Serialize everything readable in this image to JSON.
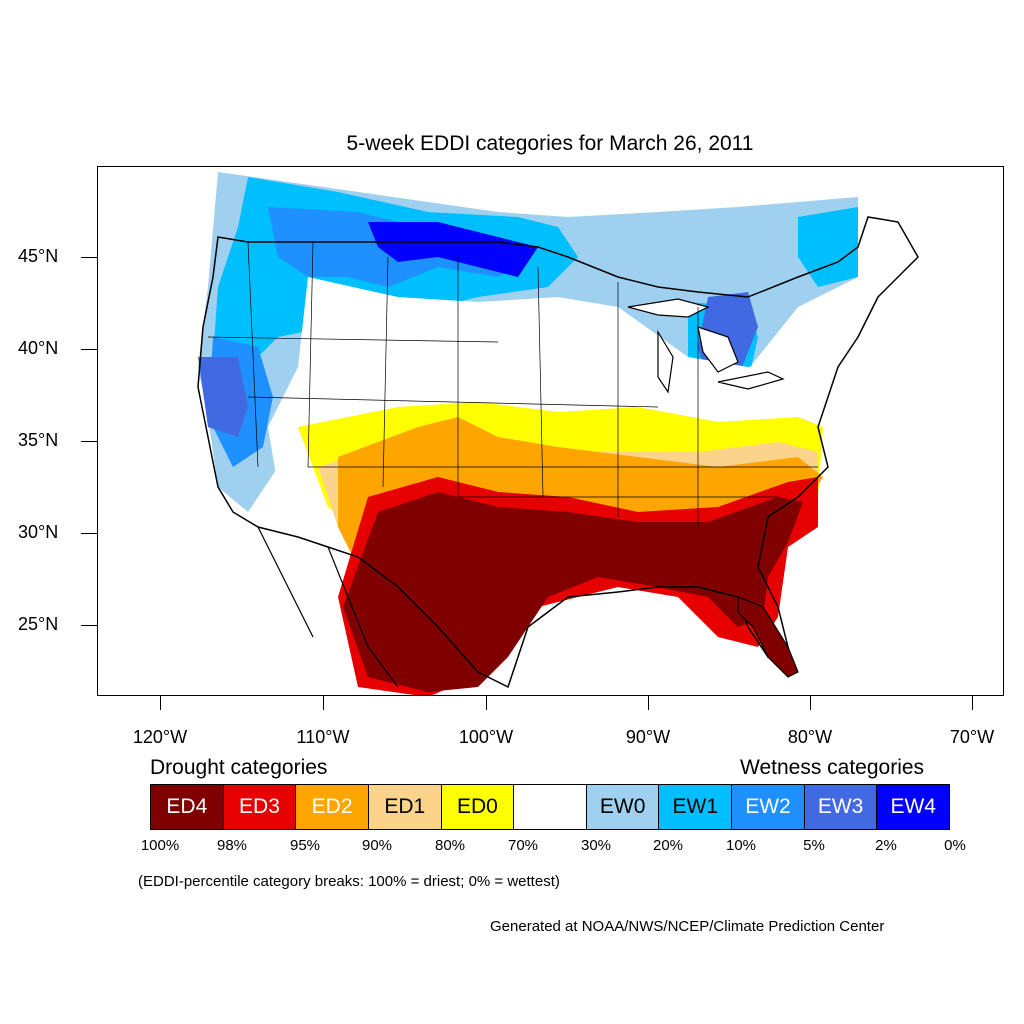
{
  "title": "5-week EDDI categories for March 26, 2011",
  "axes": {
    "lat_labels": [
      "45°N",
      "40°N",
      "35°N",
      "30°N",
      "25°N"
    ],
    "lon_labels": [
      "120°W",
      "110°W",
      "100°W",
      "90°W",
      "80°W",
      "70°W"
    ]
  },
  "legend": {
    "drought_heading": "Drought categories",
    "wetness_heading": "Wetness categories",
    "categories": [
      {
        "label": "ED4",
        "color": "#800000"
      },
      {
        "label": "ED3",
        "color": "#e60000"
      },
      {
        "label": "ED2",
        "color": "#ffa500"
      },
      {
        "label": "ED1",
        "color": "#fcd38b"
      },
      {
        "label": "ED0",
        "color": "#ffff00"
      },
      {
        "label": "",
        "color": "#ffffff"
      },
      {
        "label": "EW0",
        "color": "#9fd0f0"
      },
      {
        "label": "EW1",
        "color": "#00bfff"
      },
      {
        "label": "EW2",
        "color": "#1e90ff"
      },
      {
        "label": "EW3",
        "color": "#4169e1"
      },
      {
        "label": "EW4",
        "color": "#0000ff"
      }
    ],
    "percent_breaks": [
      "100%",
      "98%",
      "95%",
      "90%",
      "80%",
      "70%",
      "30%",
      "20%",
      "10%",
      "5%",
      "2%",
      "0%"
    ]
  },
  "note": "(EDDI-percentile category breaks: 100% = driest; 0% = wettest)",
  "credit": "Generated at NOAA/NWS/NCEP/Climate Prediction Center"
}
